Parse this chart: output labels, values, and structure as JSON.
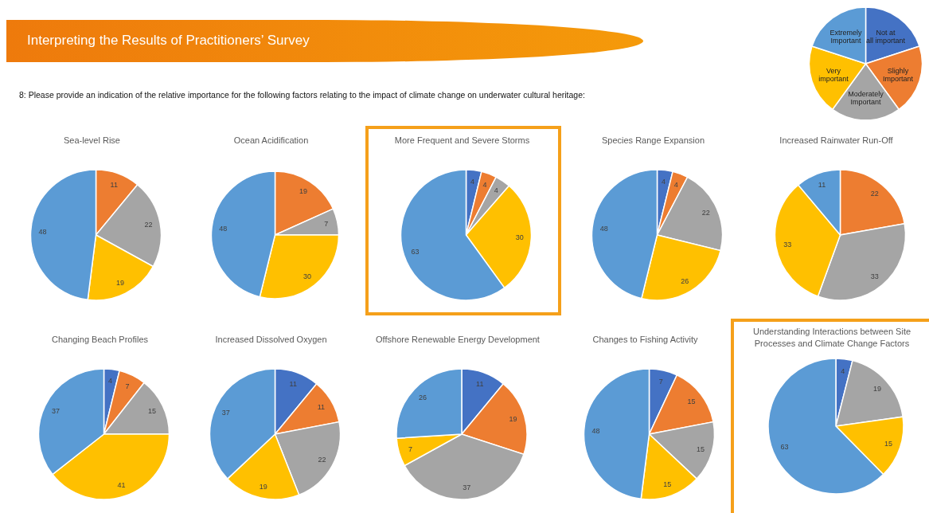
{
  "chart_data": [
    {
      "type": "other",
      "title": "Interpreting the Results of Practitioners’ Survey",
      "subtitle": "8: Please provide an indication of the relative importance for the following factors relating to the impact of climate change on underwater cultural heritage:"
    },
    {
      "type": "pie",
      "categories": [
        "Not at all important",
        "Slighly Important",
        "Moderately Important",
        "Very important",
        "Extremely Important"
      ],
      "values": [
        20,
        20,
        20,
        20,
        20
      ],
      "colors": [
        "#4472c4",
        "#ed7d31",
        "#a5a5a5",
        "#ffc000",
        "#5b9bd5"
      ]
    },
    {
      "type": "pie",
      "title": "Sea-level Rise",
      "categories": [
        null,
        null,
        null,
        null,
        null
      ],
      "values": [
        0,
        11,
        22,
        19,
        48
      ],
      "value_labels": [
        null,
        "11",
        "22",
        "19",
        "48"
      ],
      "colors": [
        "#4472c4",
        "#ed7d31",
        "#a5a5a5",
        "#ffc000",
        "#5b9bd5"
      ]
    },
    {
      "type": "pie",
      "title": "Ocean Acidification",
      "categories": [
        null,
        null,
        null,
        null,
        null
      ],
      "values": [
        0,
        19,
        7,
        30,
        48
      ],
      "value_labels": [
        null,
        "19",
        "7",
        "30",
        "48"
      ],
      "colors": [
        "#4472c4",
        "#ed7d31",
        "#a5a5a5",
        "#ffc000",
        "#5b9bd5"
      ]
    },
    {
      "type": "pie",
      "title": "More Frequent and Severe Storms",
      "categories": [
        null,
        null,
        null,
        null,
        null
      ],
      "values": [
        4,
        4,
        4,
        30,
        63
      ],
      "data_labels": true,
      "colors": [
        "#4472c4",
        "#ed7d31",
        "#a5a5a5",
        "#ffc000",
        "#5b9bd5"
      ]
    },
    {
      "type": "pie",
      "title": "Species Range Expansion",
      "categories": [
        null,
        null,
        null,
        null,
        null
      ],
      "values": [
        4,
        4,
        22,
        26,
        48
      ],
      "data_labels": true,
      "colors": [
        "#4472c4",
        "#ed7d31",
        "#a5a5a5",
        "#ffc000",
        "#5b9bd5"
      ]
    },
    {
      "type": "pie",
      "title": "Increased Rainwater Run-Off",
      "categories": [
        null,
        null,
        null,
        null,
        null
      ],
      "values": [
        0,
        22,
        33,
        33,
        11
      ],
      "value_labels": [
        null,
        "22",
        "33",
        "33",
        "11"
      ],
      "colors": [
        "#4472c4",
        "#ed7d31",
        "#a5a5a5",
        "#ffc000",
        "#5b9bd5"
      ]
    },
    {
      "type": "pie",
      "title": "Changing Beach Profiles",
      "categories": [
        null,
        null,
        null,
        null,
        null
      ],
      "values": [
        4,
        7,
        15,
        41,
        37
      ],
      "data_labels": true,
      "colors": [
        "#4472c4",
        "#ed7d31",
        "#a5a5a5",
        "#ffc000",
        "#5b9bd5"
      ]
    },
    {
      "type": "pie",
      "title": "Increased Dissolved Oxygen",
      "categories": [
        null,
        null,
        null,
        null,
        null
      ],
      "values": [
        11,
        11,
        22,
        19,
        37
      ],
      "data_labels": true,
      "colors": [
        "#4472c4",
        "#ed7d31",
        "#a5a5a5",
        "#ffc000",
        "#5b9bd5"
      ]
    },
    {
      "type": "pie",
      "title": "Offshore Renewable Energy Development",
      "categories": [
        null,
        null,
        null,
        null,
        null
      ],
      "values": [
        11,
        19,
        37,
        7,
        26
      ],
      "data_labels": true,
      "colors": [
        "#4472c4",
        "#ed7d31",
        "#a5a5a5",
        "#ffc000",
        "#5b9bd5"
      ]
    },
    {
      "type": "pie",
      "title": "Changes to Fishing Activity",
      "categories": [
        null,
        null,
        null,
        null,
        null
      ],
      "values": [
        7,
        15,
        15,
        15,
        48
      ],
      "data_labels": true,
      "colors": [
        "#4472c4",
        "#ed7d31",
        "#a5a5a5",
        "#ffc000",
        "#5b9bd5"
      ]
    },
    {
      "type": "pie",
      "title": "Understanding Interactions between Site Processes and Climate Change Factors",
      "categories": [
        null,
        null,
        null,
        null,
        null
      ],
      "values": [
        4,
        0,
        19,
        15,
        63
      ],
      "value_labels": [
        "4",
        null,
        "19",
        "15",
        "63"
      ],
      "colors": [
        "#4472c4",
        "#ed7d31",
        "#a5a5a5",
        "#ffc000",
        "#5b9bd5"
      ]
    }
  ]
}
